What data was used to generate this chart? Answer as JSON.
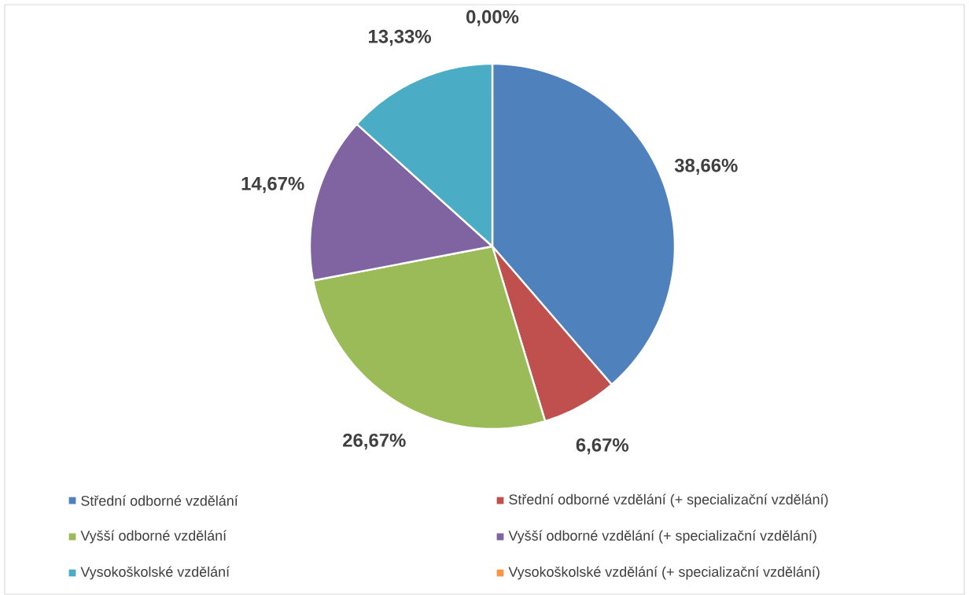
{
  "chart_data": {
    "type": "pie",
    "categories": [
      "Střední odborné vzdělání",
      "Střední odborné vzdělání (+ specializační vzdělání)",
      "Vyšší odborné vzdělání",
      "Vyšší odborné vzdělání (+ specializační vzdělání)",
      "Vysokoškolské vzdělání",
      "Vysokoškolské vzdělání (+ specializační vzdělání)"
    ],
    "values": [
      38.66,
      6.67,
      26.67,
      14.67,
      13.33,
      0.0
    ],
    "value_labels": [
      "38,66%",
      "6,67%",
      "26,67%",
      "14,67%",
      "13,33%",
      "0,00%"
    ],
    "colors": [
      "#4f81bd",
      "#c0504d",
      "#9bbb59",
      "#8064a2",
      "#4bacc6",
      "#f79646"
    ],
    "legend": "bottom"
  }
}
